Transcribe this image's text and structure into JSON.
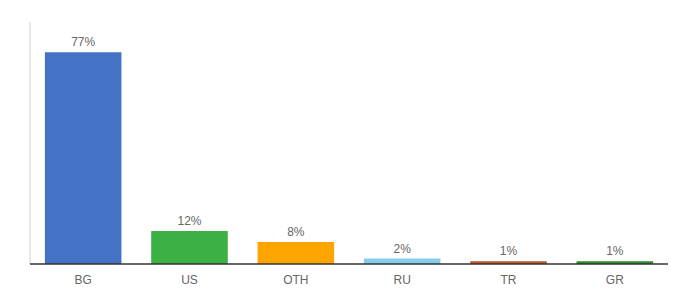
{
  "chart_data": {
    "type": "bar",
    "categories": [
      "BG",
      "US",
      "OTH",
      "RU",
      "TR",
      "GR"
    ],
    "values": [
      77,
      12,
      8,
      2,
      1,
      1
    ],
    "value_labels": [
      "77%",
      "12%",
      "8%",
      "2%",
      "1%",
      "1%"
    ],
    "colors": [
      "#4472c4",
      "#3cb043",
      "#ffa500",
      "#87ceeb",
      "#c0522a",
      "#2d8a2d"
    ],
    "ylim": [
      0,
      88
    ],
    "data_labels": true,
    "tick_labels": "x",
    "grid": false
  }
}
